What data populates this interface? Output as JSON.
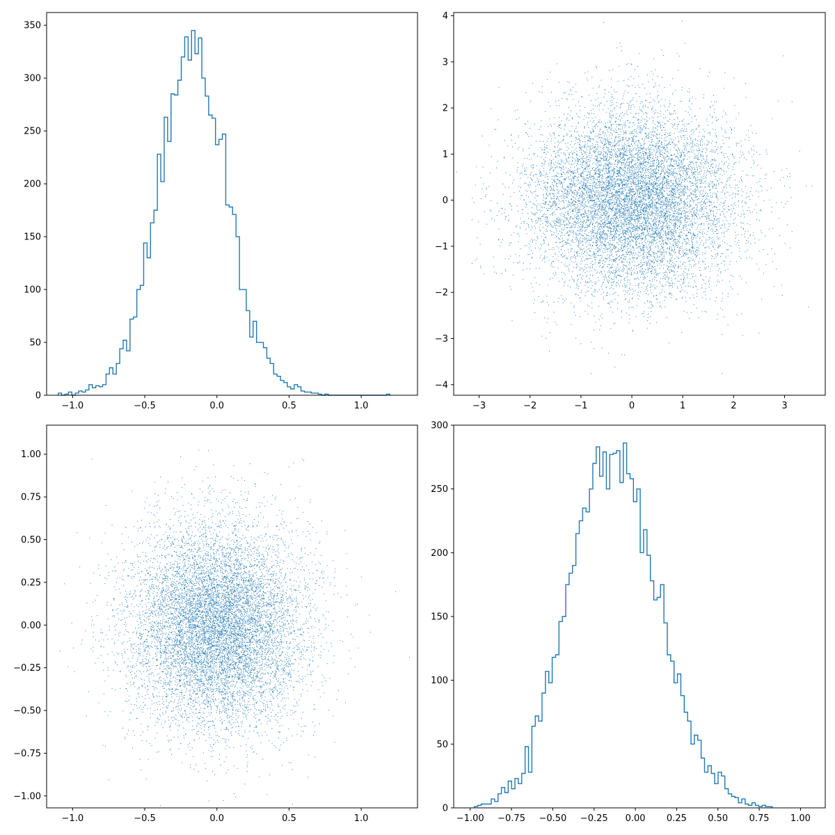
{
  "chart_data": [
    {
      "type": "histogram",
      "histtype": "step",
      "color": "#1f77b4",
      "xlim": [
        -1.18,
        1.39
      ],
      "ylim": [
        0,
        362
      ],
      "xticks": [
        -1.0,
        -0.5,
        0.0,
        0.5,
        1.0
      ],
      "xtick_labels": [
        "−1.0",
        "−0.5",
        "0.0",
        "0.5",
        "1.0"
      ],
      "yticks": [
        0,
        50,
        100,
        150,
        200,
        250,
        300,
        350
      ],
      "ytick_labels": [
        "0",
        "50",
        "100",
        "150",
        "200",
        "250",
        "300",
        "350"
      ],
      "bin_start": -1.1,
      "bin_width": 0.0237,
      "counts": [
        2,
        0,
        1,
        3,
        0,
        2,
        4,
        3,
        5,
        10,
        7,
        9,
        8,
        10,
        20,
        26,
        20,
        30,
        44,
        52,
        42,
        72,
        74,
        100,
        104,
        144,
        130,
        163,
        175,
        228,
        202,
        263,
        240,
        285,
        284,
        298,
        320,
        339,
        317,
        345,
        323,
        338,
        300,
        283,
        265,
        262,
        237,
        242,
        247,
        180,
        178,
        171,
        150,
        100,
        100,
        80,
        55,
        70,
        50,
        50,
        45,
        35,
        30,
        20,
        18,
        14,
        12,
        8,
        6,
        10,
        8,
        4,
        3,
        3,
        2,
        2,
        1,
        0,
        1,
        0,
        0,
        0,
        0,
        0,
        0,
        0,
        0,
        0,
        0,
        0,
        0,
        0,
        0,
        0,
        0,
        0,
        1
      ]
    },
    {
      "type": "scatter",
      "marker": "pixel",
      "color": "#1f77b4",
      "xlim": [
        -3.5,
        3.8
      ],
      "ylim": [
        -4.23,
        4.07
      ],
      "xticks": [
        -3,
        -2,
        -1,
        0,
        1,
        2,
        3
      ],
      "xtick_labels": [
        "−3",
        "−2",
        "−1",
        "0",
        "1",
        "2",
        "3"
      ],
      "yticks": [
        -4,
        -3,
        -2,
        -1,
        0,
        1,
        2,
        3,
        4
      ],
      "ytick_labels": [
        "−4",
        "−3",
        "−2",
        "−1",
        "0",
        "1",
        "2",
        "3",
        "4"
      ],
      "n_points": 10000,
      "x_mean": 0.0,
      "x_std": 1.0,
      "y_mean": 0.0,
      "y_std": 1.0
    },
    {
      "type": "scatter",
      "marker": "pixel",
      "color": "#1f77b4",
      "xlim": [
        -1.18,
        1.39
      ],
      "ylim": [
        -1.07,
        1.17
      ],
      "xticks": [
        -1.0,
        -0.5,
        0.0,
        0.5,
        1.0
      ],
      "xtick_labels": [
        "−1.0",
        "−0.5",
        "0.0",
        "0.5",
        "1.0"
      ],
      "yticks": [
        -1.0,
        -0.75,
        -0.5,
        -0.25,
        0.0,
        0.25,
        0.5,
        0.75,
        1.0
      ],
      "ytick_labels": [
        "−1.00",
        "−0.75",
        "−0.50",
        "−0.25",
        "0.00",
        "0.25",
        "0.50",
        "0.75",
        "1.00"
      ],
      "n_points": 10000,
      "x_mean": 0.0,
      "x_std": 0.3,
      "y_mean": 0.0,
      "y_std": 0.3
    },
    {
      "type": "histogram",
      "histtype": "step",
      "color": "#1f77b4",
      "xlim": [
        -1.1,
        1.15
      ],
      "ylim": [
        0,
        300
      ],
      "xticks": [
        -1.0,
        -0.75,
        -0.5,
        -0.25,
        0.0,
        0.25,
        0.5,
        0.75,
        1.0
      ],
      "xtick_labels": [
        "−1.00",
        "−0.75",
        "−0.50",
        "−0.25",
        "0.00",
        "0.25",
        "0.50",
        "0.75",
        "1.00"
      ],
      "yticks": [
        0,
        50,
        100,
        150,
        200,
        250,
        300
      ],
      "ytick_labels": [
        "0",
        "50",
        "100",
        "150",
        "200",
        "250",
        "300"
      ],
      "bin_start": -0.975,
      "bin_width": 0.0205,
      "counts": [
        1,
        2,
        3,
        3,
        3,
        7,
        5,
        11,
        16,
        12,
        21,
        15,
        23,
        19,
        27,
        48,
        28,
        64,
        72,
        68,
        90,
        107,
        98,
        118,
        120,
        146,
        150,
        175,
        184,
        190,
        215,
        225,
        235,
        232,
        250,
        270,
        283,
        260,
        279,
        250,
        277,
        278,
        280,
        255,
        286,
        262,
        258,
        240,
        250,
        200,
        218,
        198,
        178,
        163,
        165,
        175,
        145,
        120,
        115,
        98,
        105,
        88,
        75,
        68,
        50,
        57,
        53,
        39,
        28,
        33,
        27,
        19,
        28,
        25,
        15,
        11,
        9,
        8,
        4,
        7,
        3,
        2,
        4,
        2,
        1,
        2,
        1,
        1
      ]
    }
  ]
}
